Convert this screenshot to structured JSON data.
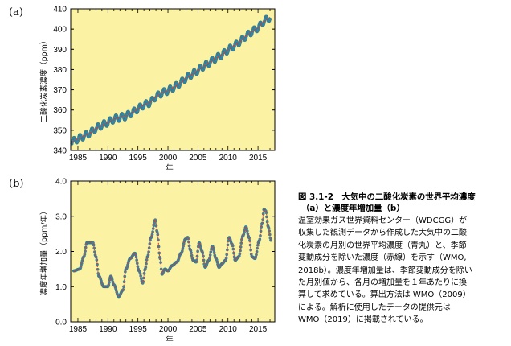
{
  "panels": {
    "a_label": "(a)",
    "b_label": "(b)"
  },
  "caption": {
    "title_lines": [
      "図 3.1-2　大気中の二酸化炭素の世界平均濃度",
      "（a）と濃度年増加量（b）"
    ],
    "body_lines": [
      "温室効果ガス世界資料センター（WDCGG）が",
      "収集した観測データから作成した大気中の二酸",
      "化炭素の月別の世界平均濃度（青丸）と、季節",
      "変動成分を除いた濃度（赤線）を示す（WMO,",
      "2018b）。濃度年増加量は、季節変動成分を除い",
      "た月別値から、各月の増加量を１年あたりに換",
      "算して求めている。算出方法は WMO（2009）",
      "による。解析に使用したデータの提供元は",
      "WMO（2019）に掲載されている。"
    ]
  },
  "colors": {
    "plot_bg": "#fbf3a3",
    "points": "#3a87a2",
    "trend": "#e03a32"
  },
  "chart_data": [
    {
      "type": "line",
      "panel": "(a)",
      "xlabel": "年",
      "ylabel": "二酸化炭素濃度（ppm）",
      "xlim": [
        1983.8,
        2017.8
      ],
      "ylim": [
        340,
        410
      ],
      "x_ticks": [
        1985,
        1990,
        1995,
        2000,
        2005,
        2010,
        2015
      ],
      "y_ticks": [
        340,
        350,
        360,
        370,
        380,
        390,
        400,
        410
      ],
      "series": [
        {
          "name": "月別の世界平均濃度",
          "marker": "circle",
          "x": [
            1984,
            1985,
            1986,
            1987,
            1988,
            1989,
            1990,
            1991,
            1992,
            1993,
            1994,
            1995,
            1996,
            1997,
            1998,
            1999,
            2000,
            2001,
            2002,
            2003,
            2004,
            2005,
            2006,
            2007,
            2008,
            2009,
            2010,
            2011,
            2012,
            2013,
            2014,
            2015,
            2016,
            2017
          ],
          "y": [
            344.2,
            345.7,
            347.1,
            348.6,
            350.9,
            352.5,
            353.9,
            355.5,
            356.3,
            357.0,
            358.6,
            360.6,
            362.5,
            363.6,
            366.6,
            368.4,
            369.6,
            371.2,
            373.2,
            375.7,
            377.6,
            379.6,
            381.7,
            383.6,
            385.6,
            387.3,
            389.7,
            391.6,
            393.8,
            396.5,
            398.7,
            400.7,
            403.9,
            405.8
          ],
          "seasonal_amplitude": 1.8
        },
        {
          "name": "季節変動成分を除いた濃度",
          "marker": "line",
          "x": [
            1984,
            1985,
            1986,
            1987,
            1988,
            1989,
            1990,
            1991,
            1992,
            1993,
            1994,
            1995,
            1996,
            1997,
            1998,
            1999,
            2000,
            2001,
            2002,
            2003,
            2004,
            2005,
            2006,
            2007,
            2008,
            2009,
            2010,
            2011,
            2012,
            2013,
            2014,
            2015,
            2016,
            2017
          ],
          "y": [
            344.2,
            345.7,
            347.1,
            348.6,
            350.9,
            352.5,
            353.9,
            355.5,
            356.3,
            357.0,
            358.6,
            360.6,
            362.5,
            363.6,
            366.6,
            368.4,
            369.6,
            371.2,
            373.2,
            375.7,
            377.6,
            379.6,
            381.7,
            383.6,
            385.6,
            387.3,
            389.7,
            391.6,
            393.8,
            396.5,
            398.7,
            400.7,
            403.9,
            405.8
          ]
        }
      ]
    },
    {
      "type": "line",
      "panel": "(b)",
      "xlabel": "年",
      "ylabel": "濃度年増加量（ppm/年）",
      "xlim": [
        1983.8,
        2017.8
      ],
      "ylim": [
        0.0,
        4.0
      ],
      "x_ticks": [
        1985,
        1990,
        1995,
        2000,
        2005,
        2010,
        2015
      ],
      "y_ticks": [
        0.0,
        1.0,
        2.0,
        3.0,
        4.0
      ],
      "series": [
        {
          "name": "濃度年増加量（月別値）",
          "marker": "circle",
          "x": [
            1984.3,
            1985.3,
            1986.0,
            1986.5,
            1987.5,
            1988.0,
            1988.5,
            1989.3,
            1990.0,
            1990.5,
            1991.0,
            1991.8,
            1992.5,
            1993.0,
            1993.7,
            1994.5,
            1995.2,
            1995.8,
            1996.2,
            1996.6,
            1997.2,
            1997.9,
            1998.2,
            1998.7,
            1999.0,
            1999.5,
            2000.0,
            2000.7,
            2001.5,
            2002.2,
            2002.9,
            2003.3,
            2003.7,
            2004.2,
            2004.7,
            2005.2,
            2005.7,
            2006.2,
            2006.8,
            2007.4,
            2008.0,
            2008.5,
            2009.0,
            2009.6,
            2010.2,
            2010.7,
            2011.2,
            2011.8,
            2012.5,
            2013.0,
            2013.5,
            2014.0,
            2014.5,
            2015.2,
            2015.7,
            2016.0,
            2016.3,
            2016.7,
            2017.2
          ],
          "y": [
            1.45,
            1.5,
            1.85,
            2.25,
            2.25,
            1.85,
            1.3,
            1.0,
            1.0,
            1.3,
            1.05,
            0.72,
            0.9,
            1.5,
            1.8,
            1.95,
            1.45,
            1.1,
            1.5,
            1.85,
            2.4,
            2.9,
            2.55,
            1.8,
            1.35,
            1.5,
            1.45,
            1.6,
            1.7,
            1.95,
            2.35,
            2.4,
            2.05,
            1.75,
            1.7,
            2.25,
            2.0,
            1.55,
            1.75,
            2.15,
            1.8,
            1.55,
            1.65,
            1.75,
            2.4,
            2.2,
            1.75,
            1.85,
            2.45,
            2.7,
            2.4,
            1.85,
            1.8,
            2.3,
            2.8,
            3.2,
            3.15,
            2.7,
            2.3
          ]
        },
        {
          "name": "濃度年増加量",
          "marker": "line",
          "x": [
            1984.3,
            1985.3,
            1986.0,
            1986.5,
            1987.5,
            1988.0,
            1988.5,
            1989.3,
            1990.0,
            1990.5,
            1991.0,
            1991.8,
            1992.5,
            1993.0,
            1993.7,
            1994.5,
            1995.2,
            1995.8,
            1996.2,
            1996.6,
            1997.2,
            1997.9,
            1998.2,
            1998.7,
            1999.0,
            1999.5,
            2000.0,
            2000.7,
            2001.5,
            2002.2,
            2002.9,
            2003.3,
            2003.7,
            2004.2,
            2004.7,
            2005.2,
            2005.7,
            2006.2,
            2006.8,
            2007.4,
            2008.0,
            2008.5,
            2009.0,
            2009.6,
            2010.2,
            2010.7,
            2011.2,
            2011.8,
            2012.5,
            2013.0,
            2013.5,
            2014.0,
            2014.5,
            2015.2,
            2015.7,
            2016.0,
            2016.3,
            2016.7,
            2017.2
          ],
          "y": [
            1.45,
            1.5,
            1.85,
            2.25,
            2.25,
            1.85,
            1.3,
            1.0,
            1.0,
            1.3,
            1.05,
            0.72,
            0.9,
            1.5,
            1.8,
            1.95,
            1.45,
            1.1,
            1.5,
            1.85,
            2.4,
            2.9,
            2.55,
            1.8,
            1.35,
            1.5,
            1.45,
            1.6,
            1.7,
            1.95,
            2.35,
            2.4,
            2.05,
            1.75,
            1.7,
            2.25,
            2.0,
            1.55,
            1.75,
            2.15,
            1.8,
            1.55,
            1.65,
            1.75,
            2.4,
            2.2,
            1.75,
            1.85,
            2.45,
            2.7,
            2.4,
            1.85,
            1.8,
            2.3,
            2.8,
            3.2,
            3.15,
            2.7,
            2.3
          ]
        }
      ]
    }
  ]
}
